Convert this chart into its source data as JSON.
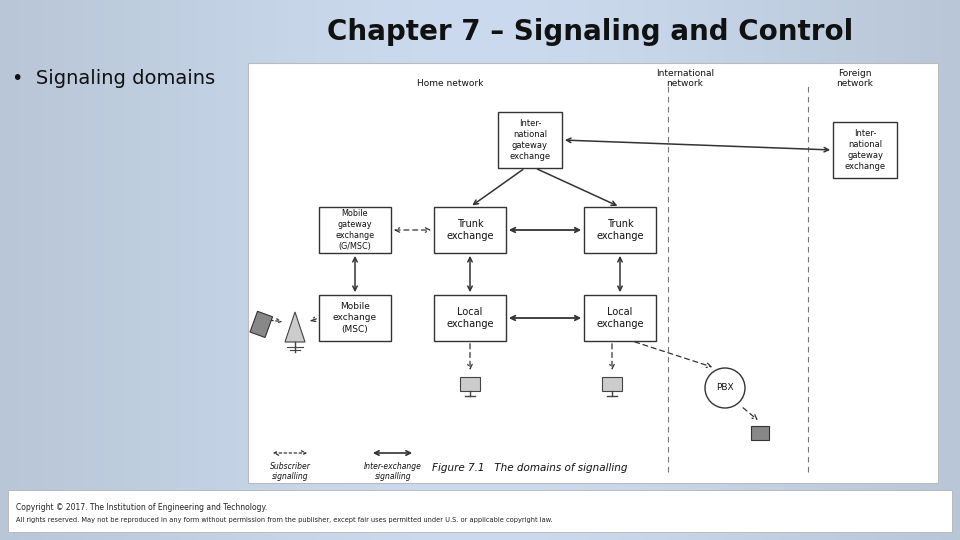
{
  "title": "Chapter 7 – Signaling and Control",
  "bullet": "•  Signaling domains",
  "title_fontsize": 20,
  "bullet_fontsize": 14,
  "title_color": "#111111",
  "bullet_color": "#111111",
  "slide_bg": "#c5d8e8",
  "copyright_line1": "Copyright © 2017. The Institution of Engineering and Technology.",
  "copyright_line2": "All rights reserved. May not be reproduced in any form without permission from the publisher, except fair uses permitted under U.S. or applicable copyright law.",
  "figure_caption": "Figure 7.1   The domains of signalling",
  "box_edge": "#333333",
  "arrow_color": "#333333"
}
